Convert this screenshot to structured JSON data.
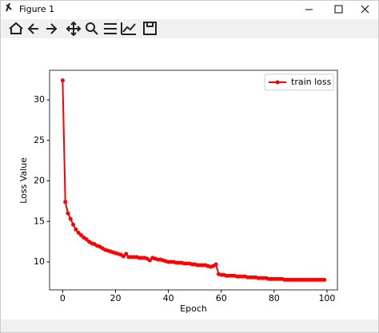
{
  "window": {
    "title": "Figure 1"
  },
  "chart_data": {
    "type": "line",
    "xlabel": "Epoch",
    "ylabel": "Loss Value",
    "x": [
      0,
      1,
      2,
      3,
      4,
      5,
      6,
      7,
      8,
      9,
      10,
      11,
      12,
      13,
      14,
      15,
      16,
      17,
      18,
      19,
      20,
      21,
      22,
      23,
      24,
      25,
      26,
      27,
      28,
      29,
      30,
      31,
      32,
      33,
      34,
      35,
      36,
      37,
      38,
      39,
      40,
      41,
      42,
      43,
      44,
      45,
      46,
      47,
      48,
      49,
      50,
      51,
      52,
      53,
      54,
      55,
      56,
      57,
      58,
      59,
      60,
      61,
      62,
      63,
      64,
      65,
      66,
      67,
      68,
      69,
      70,
      71,
      72,
      73,
      74,
      75,
      76,
      77,
      78,
      79,
      80,
      81,
      82,
      83,
      84,
      85,
      86,
      87,
      88,
      89,
      90,
      91,
      92,
      93,
      94,
      95,
      96,
      97,
      98,
      99
    ],
    "series": [
      {
        "name": "train loss",
        "color": "#ff0000",
        "values": [
          32.4,
          17.4,
          16.0,
          15.3,
          14.6,
          14.0,
          13.6,
          13.3,
          13.0,
          12.8,
          12.5,
          12.3,
          12.2,
          12.0,
          11.9,
          11.7,
          11.5,
          11.4,
          11.3,
          11.2,
          11.1,
          11.0,
          10.9,
          10.7,
          11.0,
          10.6,
          10.6,
          10.6,
          10.6,
          10.5,
          10.5,
          10.5,
          10.4,
          10.2,
          10.5,
          10.4,
          10.3,
          10.3,
          10.2,
          10.1,
          10.0,
          10.0,
          10.0,
          9.9,
          9.9,
          9.9,
          9.8,
          9.8,
          9.8,
          9.7,
          9.7,
          9.6,
          9.6,
          9.6,
          9.6,
          9.5,
          9.4,
          9.5,
          9.7,
          8.5,
          8.4,
          8.4,
          8.3,
          8.3,
          8.3,
          8.3,
          8.2,
          8.2,
          8.2,
          8.2,
          8.1,
          8.1,
          8.1,
          8.1,
          8.0,
          8.0,
          8.0,
          8.0,
          7.9,
          7.9,
          7.9,
          7.9,
          7.9,
          7.9,
          7.8,
          7.8,
          7.8,
          7.8,
          7.8,
          7.8,
          7.8,
          7.8,
          7.8,
          7.8,
          7.8,
          7.8,
          7.8,
          7.8,
          7.8,
          7.8
        ]
      }
    ],
    "xlim": [
      -4.95,
      103.95
    ],
    "ylim": [
      6.55,
      33.65
    ],
    "xticks": [
      0,
      20,
      40,
      60,
      80,
      100
    ],
    "yticks": [
      10,
      15,
      20,
      25,
      30
    ],
    "legend": "upper right"
  }
}
